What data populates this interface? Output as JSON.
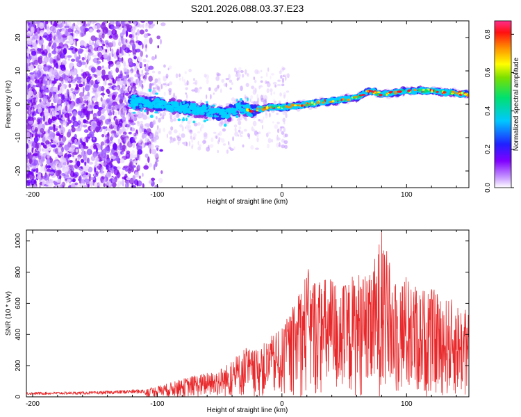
{
  "title": "S201.2026.088.03.37.E23",
  "colors": {
    "snr_line": "#e8282a",
    "axis": "#000000",
    "spectrogram_palette": [
      "#ffffff",
      "#d9b8ff",
      "#8a2be2",
      "#2a2aff",
      "#00d8ff",
      "#00e070",
      "#ffff00",
      "#ff8c00",
      "#ff1020",
      "#ff2d8c"
    ]
  },
  "chart_data": [
    {
      "type": "heatmap",
      "xlabel": "Height of straight line (km)",
      "ylabel": "Frequency (Hz)",
      "xlim": [
        -205,
        150
      ],
      "ylim": [
        -25,
        25
      ],
      "xticks": [
        -200,
        -100,
        0,
        100
      ],
      "yticks": [
        -20,
        -10,
        0,
        10,
        20
      ],
      "colorbar": {
        "label": "Normalized spectral amplitude",
        "range": [
          0.0,
          0.87
        ],
        "ticks": [
          "0.0",
          "0.2",
          "0.4",
          "0.6",
          "0.8"
        ]
      },
      "ridge": {
        "description_points_x": [
          -122,
          -100,
          -80,
          -60,
          -45,
          -35,
          -25,
          -10,
          0,
          20,
          40,
          60,
          70,
          80,
          100,
          120,
          150
        ],
        "description_points_y": [
          1,
          0,
          -1,
          -2,
          -3,
          -1,
          -2,
          -1,
          -1,
          0,
          1,
          2,
          4,
          3,
          4,
          4,
          3
        ]
      }
    },
    {
      "type": "line",
      "xlabel": "Height of straight line (km)",
      "ylabel": "SNR (10 * v/v)",
      "xlim": [
        -205,
        150
      ],
      "ylim": [
        0,
        1070
      ],
      "xticks": [
        -200,
        -100,
        0,
        100
      ],
      "yticks": [
        0,
        200,
        400,
        600,
        800,
        1000
      ],
      "envelope": {
        "x": [
          -205,
          -150,
          -110,
          -90,
          -70,
          -55,
          -40,
          -30,
          -20,
          -10,
          0,
          10,
          20,
          30,
          40,
          50,
          60,
          70,
          80,
          90,
          100,
          110,
          120,
          130,
          140,
          150
        ],
        "y": [
          30,
          35,
          50,
          90,
          140,
          160,
          230,
          320,
          300,
          380,
          440,
          600,
          830,
          760,
          780,
          720,
          820,
          760,
          1070,
          760,
          790,
          700,
          700,
          640,
          620,
          550
        ]
      }
    }
  ]
}
